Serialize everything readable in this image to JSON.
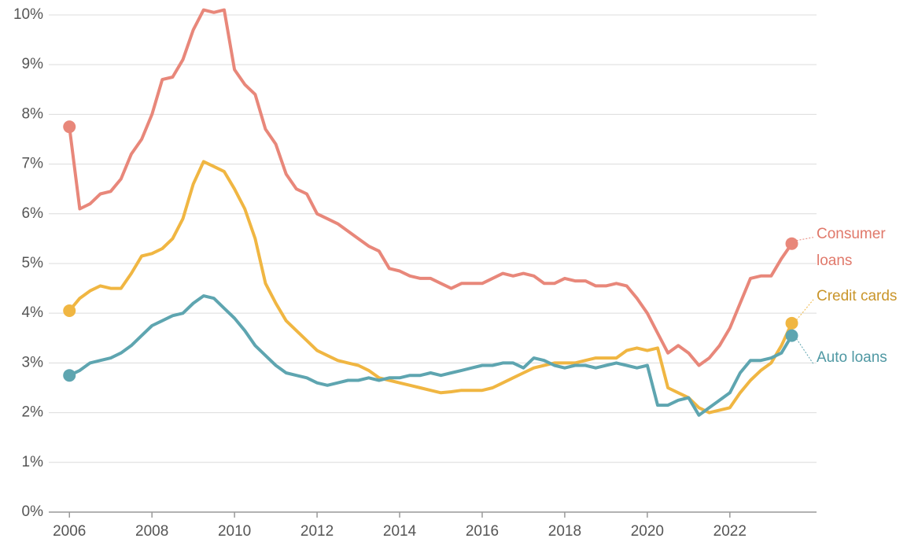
{
  "chart_data": {
    "type": "line",
    "x": [
      2006,
      2006.25,
      2006.5,
      2006.75,
      2007,
      2007.25,
      2007.5,
      2007.75,
      2008,
      2008.25,
      2008.5,
      2008.75,
      2009,
      2009.25,
      2009.5,
      2009.75,
      2010,
      2010.25,
      2010.5,
      2010.75,
      2011,
      2011.25,
      2011.5,
      2011.75,
      2012,
      2012.25,
      2012.5,
      2012.75,
      2013,
      2013.25,
      2013.5,
      2013.75,
      2014,
      2014.25,
      2014.5,
      2014.75,
      2015,
      2015.25,
      2015.5,
      2015.75,
      2016,
      2016.25,
      2016.5,
      2016.75,
      2017,
      2017.25,
      2017.5,
      2017.75,
      2018,
      2018.25,
      2018.5,
      2018.75,
      2019,
      2019.25,
      2019.5,
      2019.75,
      2020,
      2020.25,
      2020.5,
      2020.75,
      2021,
      2021.25,
      2021.5,
      2021.75,
      2022,
      2022.25,
      2022.5,
      2022.75,
      2023,
      2023.25,
      2023.5
    ],
    "series": [
      {
        "name": "Consumer loans",
        "color": "#e8877a",
        "label_color": "#e0786a",
        "values": [
          7.75,
          6.1,
          6.2,
          6.4,
          6.45,
          6.7,
          7.2,
          7.5,
          8.0,
          8.7,
          8.75,
          9.1,
          9.7,
          10.1,
          10.05,
          10.1,
          8.9,
          8.6,
          8.4,
          7.7,
          7.4,
          6.8,
          6.5,
          6.4,
          6.0,
          5.9,
          5.8,
          5.65,
          5.5,
          5.35,
          5.25,
          4.9,
          4.85,
          4.75,
          4.7,
          4.7,
          4.6,
          4.5,
          4.6,
          4.6,
          4.6,
          4.7,
          4.8,
          4.75,
          4.8,
          4.75,
          4.6,
          4.6,
          4.7,
          4.65,
          4.65,
          4.55,
          4.55,
          4.6,
          4.55,
          4.3,
          4.0,
          3.6,
          3.2,
          3.35,
          3.2,
          2.95,
          3.1,
          3.35,
          3.7,
          4.2,
          4.7,
          4.75,
          4.75,
          5.1,
          5.4
        ]
      },
      {
        "name": "Credit cards",
        "color": "#f0b642",
        "label_color": "#c9952a",
        "values": [
          4.05,
          4.3,
          4.45,
          4.55,
          4.5,
          4.5,
          4.8,
          5.15,
          5.2,
          5.3,
          5.5,
          5.9,
          6.6,
          7.05,
          6.95,
          6.85,
          6.5,
          6.1,
          5.5,
          4.6,
          4.2,
          3.85,
          3.65,
          3.45,
          3.25,
          3.15,
          3.05,
          3.0,
          2.95,
          2.85,
          2.7,
          2.65,
          2.6,
          2.55,
          2.5,
          2.45,
          2.4,
          2.42,
          2.45,
          2.45,
          2.45,
          2.5,
          2.6,
          2.7,
          2.8,
          2.9,
          2.95,
          3.0,
          3.0,
          3.0,
          3.05,
          3.1,
          3.1,
          3.1,
          3.25,
          3.3,
          3.25,
          3.3,
          2.5,
          2.4,
          2.3,
          2.1,
          2.0,
          2.05,
          2.1,
          2.4,
          2.65,
          2.85,
          3.0,
          3.35,
          3.8
        ]
      },
      {
        "name": "Auto loans",
        "color": "#5ea5b0",
        "label_color": "#4f98a3",
        "values": [
          2.75,
          2.85,
          3.0,
          3.05,
          3.1,
          3.2,
          3.35,
          3.55,
          3.75,
          3.85,
          3.95,
          4.0,
          4.2,
          4.35,
          4.3,
          4.1,
          3.9,
          3.65,
          3.35,
          3.15,
          2.95,
          2.8,
          2.75,
          2.7,
          2.6,
          2.55,
          2.6,
          2.65,
          2.65,
          2.7,
          2.65,
          2.7,
          2.7,
          2.75,
          2.75,
          2.8,
          2.75,
          2.8,
          2.85,
          2.9,
          2.95,
          2.95,
          3.0,
          3.0,
          2.9,
          3.1,
          3.05,
          2.95,
          2.9,
          2.95,
          2.95,
          2.9,
          2.95,
          3.0,
          2.95,
          2.9,
          2.95,
          2.15,
          2.15,
          2.25,
          2.3,
          1.95,
          2.1,
          2.25,
          2.4,
          2.8,
          3.05,
          3.05,
          3.1,
          3.2,
          3.55
        ]
      }
    ],
    "xlim": [
      2005.5,
      2024.1
    ],
    "xticks": [
      2006,
      2008,
      2010,
      2012,
      2014,
      2016,
      2018,
      2020,
      2022
    ],
    "ylim": [
      0,
      10.3
    ],
    "yticks": [
      {
        "value": 0,
        "label": "0%"
      },
      {
        "value": 1,
        "label": "1%"
      },
      {
        "value": 2,
        "label": "2%"
      },
      {
        "value": 3,
        "label": "3%"
      },
      {
        "value": 4,
        "label": "4%"
      },
      {
        "value": 5,
        "label": "5%"
      },
      {
        "value": 6,
        "label": "6%"
      },
      {
        "value": 7,
        "label": "7%"
      },
      {
        "value": 8,
        "label": "8%"
      },
      {
        "value": 9,
        "label": "9%"
      },
      {
        "value": 10,
        "label": "10%"
      }
    ],
    "grid": true
  }
}
